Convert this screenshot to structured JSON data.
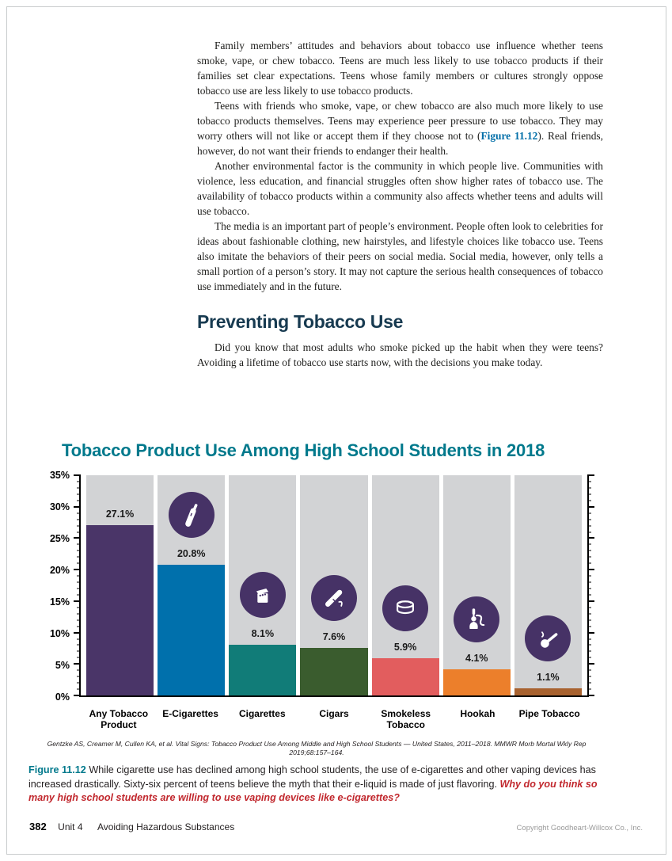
{
  "body_text": {
    "p1": "Family members’ attitudes and behaviors about tobacco use influence whether teens smoke, vape, or chew tobacco. Teens are much less likely to use tobacco products if their families set clear expectations. Teens whose family members or cultures strongly oppose tobacco use are less likely to use tobacco products.",
    "p2_before": "Teens with friends who smoke, vape, or chew tobacco are also much more likely to use tobacco products themselves. Teens may experience peer pressure to use tobacco. They may worry others will not like or accept them if they choose not to (",
    "p2_link": "Figure 11.12",
    "p2_after": "). Real friends, however, do not want their friends to endanger their health.",
    "p3": "Another environmental factor is the community in which people live. Communities with violence, less education, and financial struggles often show higher rates of tobacco use. The availability of tobacco products within a community also affects whether teens and adults will use tobacco.",
    "p4": "The media is an important part of people’s environment. People often look to celebrities for ideas about fashionable clothing, new hairstyles, and lifestyle choices like tobacco use. Teens also imitate the behaviors of their peers on social media. Social media, however, only tells a small portion of a person’s story. It may not capture the serious health consequences of tobacco use immediately and in the future."
  },
  "section": {
    "heading": "Preventing Tobacco Use",
    "p": "Did you know that most adults who smoke picked up the habit when they were teens? Avoiding a lifetime of tobacco use starts now, with the decisions you make today."
  },
  "chart_data": {
    "type": "bar",
    "title": "Tobacco Product Use Among High School Students in 2018",
    "categories": [
      "Any Tobacco\nProduct",
      "E-Cigarettes",
      "Cigarettes",
      "Cigars",
      "Smokeless\nTobacco",
      "Hookah",
      "Pipe Tobacco"
    ],
    "values": [
      27.1,
      20.8,
      8.1,
      7.6,
      5.9,
      4.1,
      1.1
    ],
    "value_labels": [
      "27.1%",
      "20.8%",
      "8.1%",
      "7.6%",
      "5.9%",
      "4.1%",
      "1.1%"
    ],
    "bar_colors": [
      "#4a3568",
      "#0070ac",
      "#117c78",
      "#3a5c2e",
      "#e25d5e",
      "#ec7f2b",
      "#a8622f"
    ],
    "icons": [
      null,
      "e-cigarette-icon",
      "cigarette-pack-icon",
      "cigar-icon",
      "smokeless-tobacco-icon",
      "hookah-icon",
      "pipe-icon"
    ],
    "ylim": [
      0,
      35
    ],
    "ytick_step": 5,
    "yticks": [
      "0%",
      "5%",
      "10%",
      "15%",
      "20%",
      "25%",
      "30%",
      "35%"
    ],
    "column_bg": "#d2d3d5",
    "icon_circle_color": "#463266",
    "xlabel": "",
    "ylabel": "",
    "legend": "none",
    "grid": false
  },
  "source": "Gentzke AS, Creamer M, Cullen KA, et al. Vital Signs: Tobacco Product Use Among Middle and High School Students — United States, 2011–2018. MMWR Morb Mortal Wkly Rep 2019;68:157–164.",
  "caption": {
    "label": "Figure 11.12",
    "text": "While cigarette use has declined among high school students, the use of e-cigarettes and other vaping devices has increased drastically. Sixty-six percent of teens believe the myth that their e-liquid is made of just flavoring.",
    "question": "Why do you think so many high school students are willing to use vaping devices like e-cigarettes?"
  },
  "footer": {
    "page_number": "382",
    "unit": "Unit 4",
    "unit_title": "Avoiding Hazardous Substances",
    "copyright": "Copyright Goodheart-Willcox Co., Inc."
  },
  "colors": {
    "heading_navy": "#173a50",
    "title_teal": "#00798c",
    "figure_ref_blue": "#006ea8",
    "question_red": "#c1272d"
  }
}
